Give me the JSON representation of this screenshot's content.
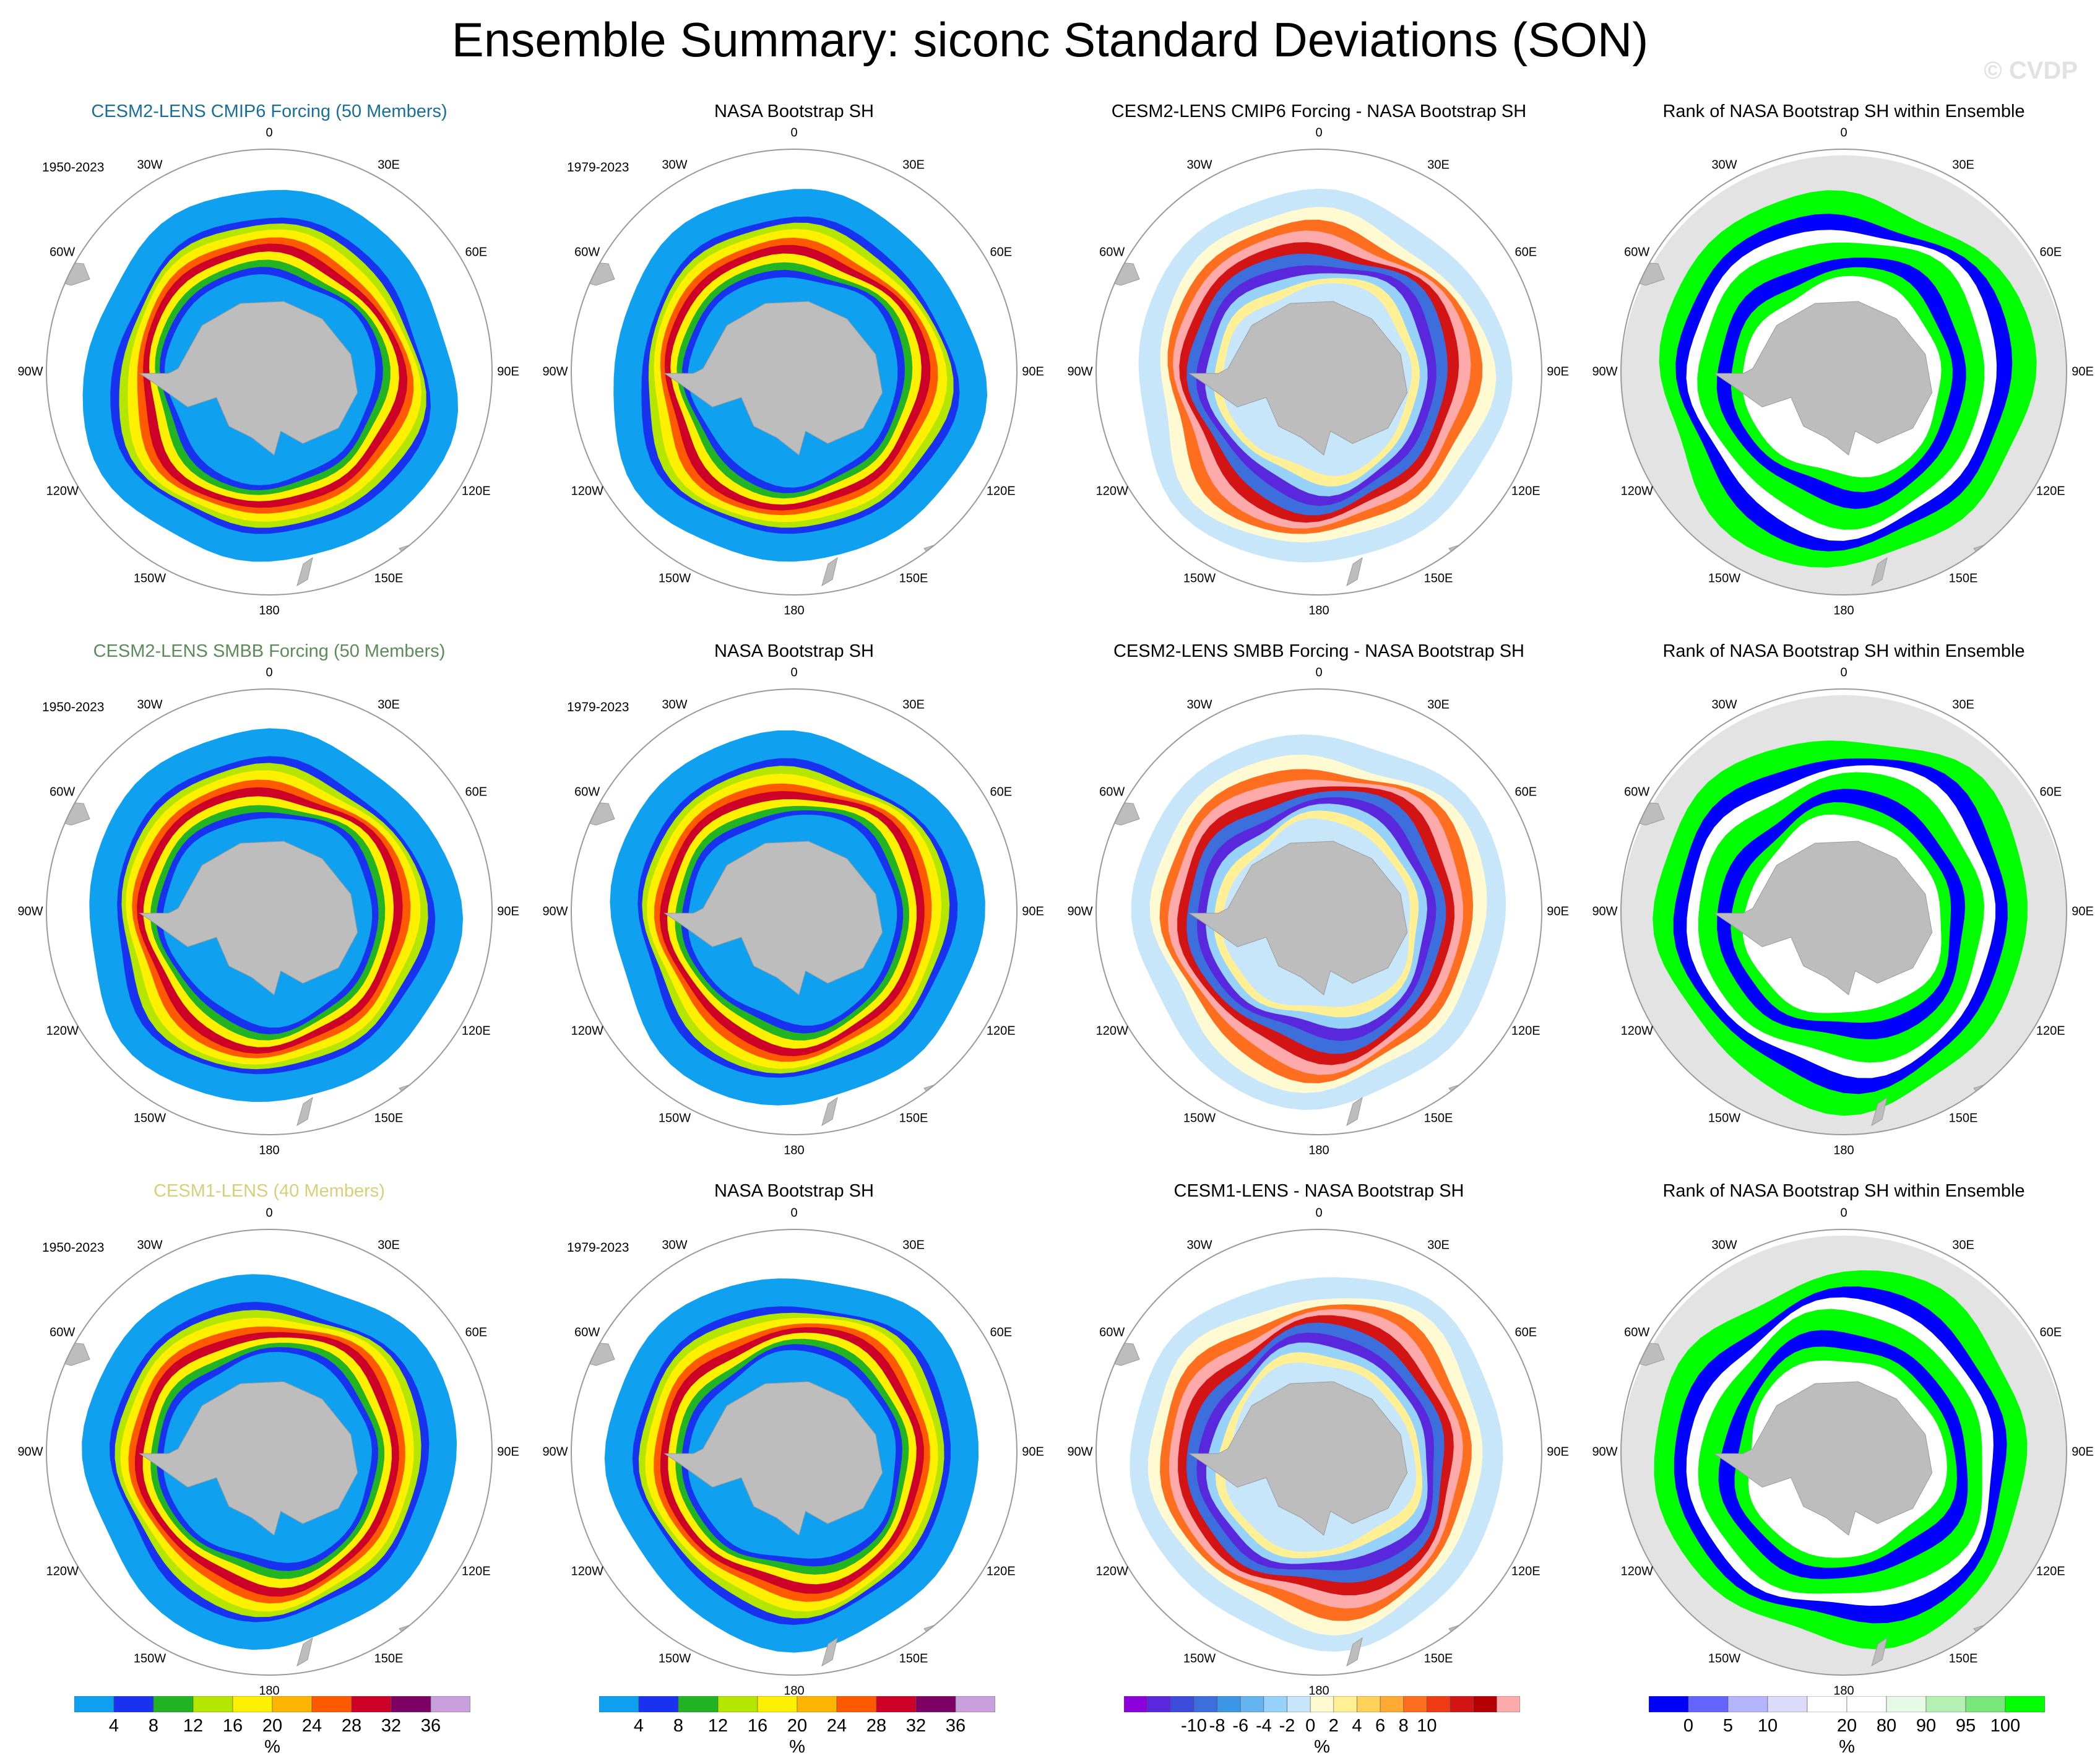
{
  "header": {
    "title": "Ensemble Summary: siconc Standard Deviations (SON)",
    "watermark": "© CVDP"
  },
  "longitude_labels": [
    "0",
    "30E",
    "60E",
    "90E",
    "120E",
    "150E",
    "180",
    "150W",
    "120W",
    "90W",
    "60W",
    "30W"
  ],
  "colors": {
    "land": "#bdbdbd",
    "rank_background": "#e3e3e3",
    "frame": "#9a9a9a",
    "ensemble_title_colors": [
      "#1a6e9c",
      "#5b8c5a",
      "#d8cf7a"
    ]
  },
  "rows": [
    {
      "panels": [
        {
          "title": "CESM2-LENS CMIP6 Forcing (50 Members)",
          "period": "1950-2023",
          "kind": "std"
        },
        {
          "title": "NASA Bootstrap SH",
          "period": "1979-2023",
          "kind": "obs"
        },
        {
          "title": "CESM2-LENS CMIP6 Forcing - NASA Bootstrap SH",
          "period": "",
          "kind": "diff"
        },
        {
          "title": "Rank of NASA Bootstrap SH within Ensemble",
          "period": "",
          "kind": "rank"
        }
      ]
    },
    {
      "panels": [
        {
          "title": "CESM2-LENS SMBB Forcing (50 Members)",
          "period": "1950-2023",
          "kind": "std"
        },
        {
          "title": "NASA Bootstrap SH",
          "period": "1979-2023",
          "kind": "obs"
        },
        {
          "title": "CESM2-LENS SMBB Forcing - NASA Bootstrap SH",
          "period": "",
          "kind": "diff"
        },
        {
          "title": "Rank of NASA Bootstrap SH within Ensemble",
          "period": "",
          "kind": "rank"
        }
      ]
    },
    {
      "panels": [
        {
          "title": "CESM1-LENS (40 Members)",
          "period": "1950-2023",
          "kind": "std"
        },
        {
          "title": "NASA Bootstrap SH",
          "period": "1979-2023",
          "kind": "obs"
        },
        {
          "title": "CESM1-LENS - NASA Bootstrap SH",
          "period": "",
          "kind": "diff"
        },
        {
          "title": "Rank of NASA Bootstrap SH within Ensemble",
          "period": "",
          "kind": "rank"
        }
      ]
    }
  ],
  "colorbars": [
    {
      "name": "std-colorbar-model",
      "unit": "%",
      "colors": [
        "#0fa0f0",
        "#1932f0",
        "#23b423",
        "#b4e600",
        "#fff000",
        "#ffb400",
        "#ff5a00",
        "#cd0028",
        "#7d0064",
        "#c8a0dc"
      ],
      "ticks": [
        "4",
        "8",
        "12",
        "16",
        "20",
        "24",
        "28",
        "32",
        "36"
      ]
    },
    {
      "name": "std-colorbar-obs",
      "unit": "%",
      "colors": [
        "#0fa0f0",
        "#1932f0",
        "#23b423",
        "#b4e600",
        "#fff000",
        "#ffb400",
        "#ff5a00",
        "#cd0028",
        "#7d0064",
        "#c8a0dc"
      ],
      "ticks": [
        "4",
        "8",
        "12",
        "16",
        "20",
        "24",
        "28",
        "32",
        "36"
      ]
    },
    {
      "name": "diff-colorbar",
      "unit": "%",
      "colors": [
        "#8c00dc",
        "#5a28dc",
        "#3c4bdc",
        "#3c6edc",
        "#3c96e6",
        "#64b4f0",
        "#96d2fa",
        "#c8e6fa",
        "#fffad2",
        "#fff096",
        "#ffd25a",
        "#ffaa32",
        "#ff6e1e",
        "#f03c14",
        "#d21414",
        "#b40000",
        "#ffaaaa"
      ],
      "ticks": [
        "-10",
        "-8",
        "-6",
        "-4",
        "-2",
        "0",
        "2",
        "4",
        "6",
        "8",
        "10"
      ]
    },
    {
      "name": "rank-colorbar",
      "unit": "%",
      "colors": [
        "#0000ff",
        "#6464ff",
        "#b4b4ff",
        "#dcdcfa",
        "#ffffff",
        "#ffffff",
        "#e6fae6",
        "#b4f0b4",
        "#78e678",
        "#00ff00"
      ],
      "ticks": [
        "0",
        "5",
        "10",
        "20",
        "80",
        "90",
        "95",
        "100"
      ]
    }
  ]
}
